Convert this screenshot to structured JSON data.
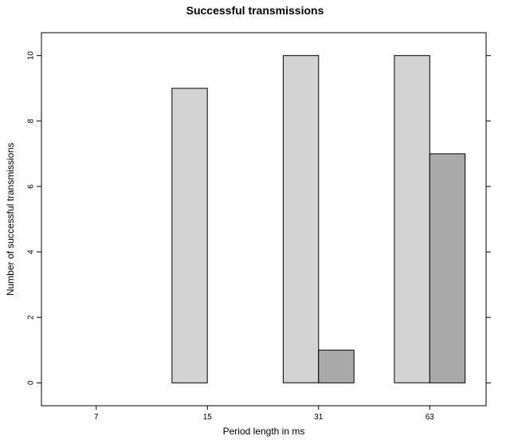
{
  "chart_data": {
    "type": "bar",
    "title": "Successful transmissions",
    "xlabel": "Period length in ms",
    "ylabel": "Number of successful transmissions",
    "categories": [
      "7",
      "15",
      "31",
      "63"
    ],
    "series": [
      {
        "values": [
          0,
          9,
          10,
          10
        ],
        "color": "#d3d3d3"
      },
      {
        "values": [
          0,
          0,
          1,
          7
        ],
        "color": "#a9a9a9"
      }
    ],
    "yticks": [
      0,
      2,
      4,
      6,
      8,
      10
    ],
    "ylim": [
      -0.7,
      10.7
    ],
    "grid": false,
    "legend": "none"
  }
}
